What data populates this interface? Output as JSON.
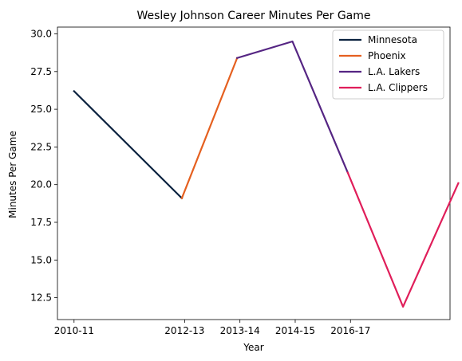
{
  "chart_data": {
    "type": "line",
    "title": "Wesley Johnson  Career Minutes Per Game",
    "xlabel": "Year",
    "ylabel": "Minutes Per Game",
    "x_tick_labels": [
      "2010-11",
      "2012-13",
      "2013-14",
      "2014-15",
      "2016-17"
    ],
    "x_tick_positions": [
      0,
      2,
      3,
      4,
      5
    ],
    "xlim": [
      -0.3,
      6.8
    ],
    "ylim": [
      11.05,
      30.45
    ],
    "y_ticks": [
      12.5,
      15.0,
      17.5,
      20.0,
      22.5,
      25.0,
      27.5,
      30.0
    ],
    "y_tick_labels": [
      "12.5",
      "15.0",
      "17.5",
      "20.0",
      "22.5",
      "25.0",
      "27.5",
      "30.0"
    ],
    "grid": false,
    "legend_position": "top-right",
    "series": [
      {
        "name": "Minnesota",
        "color": "#0c2340",
        "x": [
          0,
          1.95
        ],
        "y": [
          26.2,
          19.1
        ]
      },
      {
        "name": "Phoenix",
        "color": "#e56020",
        "x": [
          1.95,
          2.95
        ],
        "y": [
          19.1,
          28.4
        ]
      },
      {
        "name": "L.A. Lakers",
        "color": "#552583",
        "x": [
          2.95,
          3.95,
          4.95
        ],
        "y": [
          28.4,
          29.5,
          20.8
        ]
      },
      {
        "name": "L.A. Clippers",
        "color": "#e01e5a",
        "x": [
          4.95,
          5.95,
          6.95
        ],
        "y": [
          20.8,
          11.9,
          20.1
        ]
      }
    ]
  }
}
